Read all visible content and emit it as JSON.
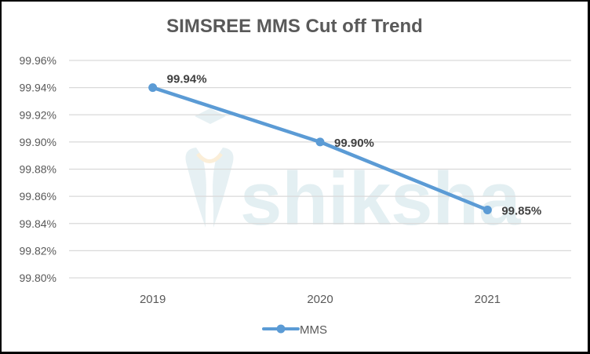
{
  "chart_data": {
    "type": "line",
    "title": "SIMSREE MMS Cut off Trend",
    "xlabel": "",
    "ylabel": "",
    "categories": [
      "2019",
      "2020",
      "2021"
    ],
    "series": [
      {
        "name": "MMS",
        "values": [
          99.94,
          99.9,
          99.85
        ],
        "labels": [
          "99.94%",
          "99.90%",
          "99.85%"
        ],
        "color": "#5b9bd5"
      }
    ],
    "ylim": [
      99.8,
      99.96
    ],
    "yticks": [
      "99.96%",
      "99.94%",
      "99.92%",
      "99.90%",
      "99.88%",
      "99.86%",
      "99.84%",
      "99.82%",
      "99.80%"
    ],
    "grid": true,
    "legend_position": "bottom"
  },
  "watermark": {
    "text": "shiksha"
  },
  "legend": {
    "label": "MMS"
  }
}
